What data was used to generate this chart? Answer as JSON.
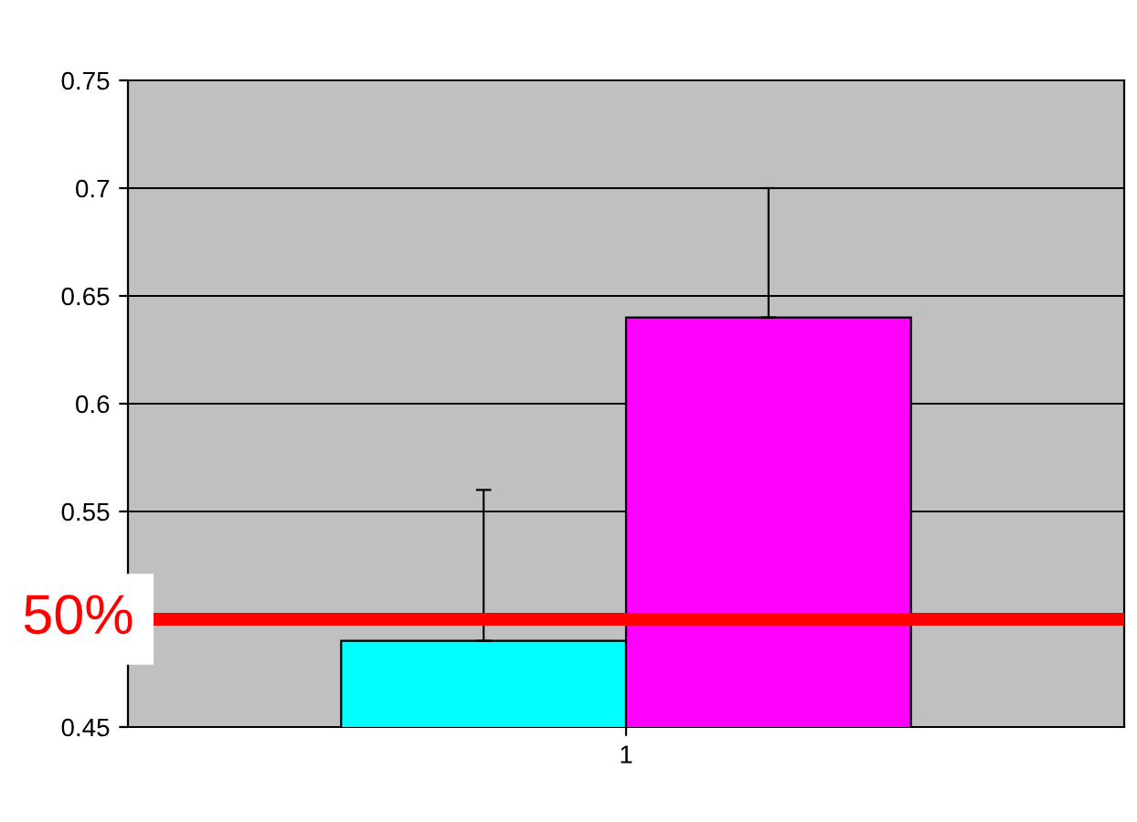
{
  "chart_data": {
    "type": "bar",
    "categories": [
      "1"
    ],
    "series": [
      {
        "color": "#00ffff",
        "values": [
          0.49
        ],
        "errors": [
          [
            0.49,
            0.56
          ]
        ]
      },
      {
        "color": "#ff00ff",
        "values": [
          0.64
        ],
        "errors": [
          [
            0.64,
            0.7
          ]
        ]
      }
    ],
    "ylim": [
      0.45,
      0.75
    ],
    "yticks": [
      0.45,
      {
        "value": 0.5,
        "label": null
      },
      0.55,
      0.6,
      0.65,
      0.7,
      0.75
    ],
    "grid": "y",
    "ref_lines": [
      {
        "axis": "y",
        "value": 0.5,
        "label": "50%",
        "color": "#ff0000"
      }
    ]
  }
}
